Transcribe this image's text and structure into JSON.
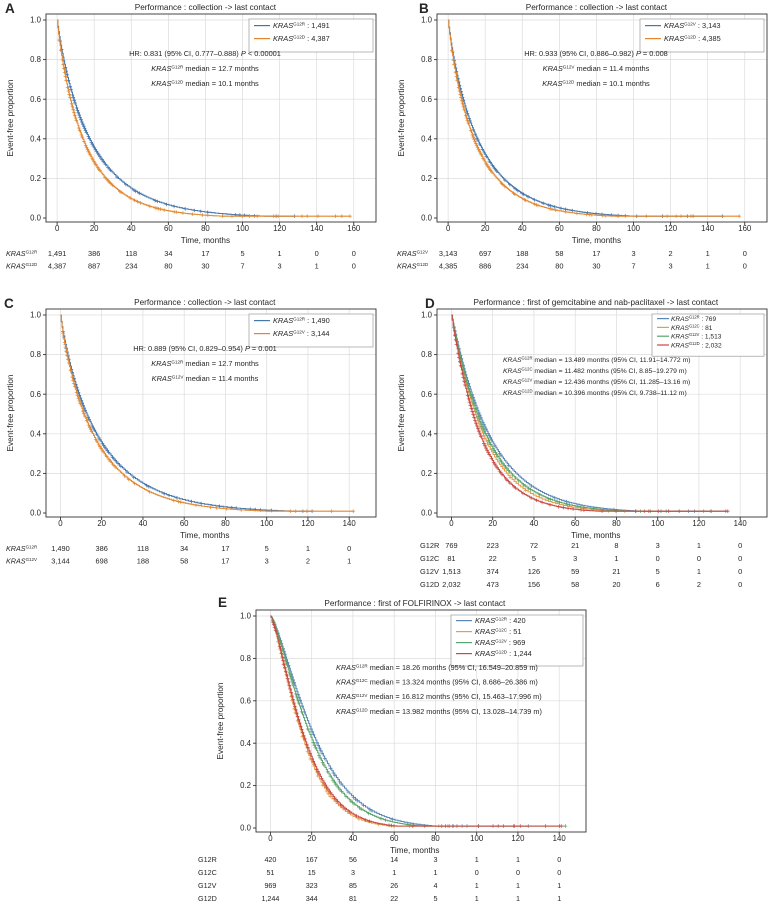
{
  "figure": {
    "background": "#ffffff",
    "text_color": "#262626",
    "grid_color": "#dcdcdc",
    "axis_color": "#333333"
  },
  "chart_data": [
    {
      "type": "km_survival",
      "letter": "A",
      "title": "Performance : collection -> last contact",
      "xlabel": "Time, months",
      "ylabel": "Event-free proportion",
      "xlim": [
        0,
        160
      ],
      "ylim": [
        0,
        1
      ],
      "grid": true,
      "legend_position": "top-right",
      "x_ticks": [
        0,
        20,
        40,
        60,
        80,
        100,
        120,
        140,
        160
      ],
      "y_ticks": [
        0,
        0.2,
        0.4,
        0.6,
        0.8,
        1
      ],
      "stats": [
        "HR: 0.831 (95% CI, 0.777–0.888) *P* < 0.00001",
        "*KRAS*^G12R^ median = 12.7 months",
        "*KRAS*^G12D^ median = 10.1 months"
      ],
      "risk_table_times": [
        0,
        20,
        40,
        60,
        80,
        100,
        120,
        140,
        160
      ],
      "series": [
        {
          "gene": "*KRAS*^G12R^",
          "row_label": "*KRAS*^G12R^",
          "name_plain": "KRAS G12R",
          "n": "1,491",
          "color": "#4577ac",
          "median_months": 12.7,
          "curve_end_months": 128,
          "at_risk": [
            "1,491",
            "386",
            "118",
            "34",
            "17",
            "5",
            "1",
            "0",
            "0"
          ]
        },
        {
          "gene": "*KRAS*^G12D^",
          "row_label": "*KRAS*^G12D^",
          "name_plain": "KRAS G12D",
          "n": "4,387",
          "color": "#e2862e",
          "median_months": 10.1,
          "curve_end_months": 158,
          "at_risk": [
            "4,387",
            "887",
            "234",
            "80",
            "30",
            "7",
            "3",
            "1",
            "0"
          ]
        }
      ]
    },
    {
      "type": "km_survival",
      "letter": "B",
      "title": "Performance : collection -> last contact",
      "xlabel": "Time, months",
      "ylabel": "Event-free proportion",
      "xlim": [
        0,
        160
      ],
      "ylim": [
        0,
        1
      ],
      "grid": true,
      "legend_position": "top-right",
      "x_ticks": [
        0,
        20,
        40,
        60,
        80,
        100,
        120,
        140,
        160
      ],
      "y_ticks": [
        0,
        0.2,
        0.4,
        0.6,
        0.8,
        1
      ],
      "stats": [
        "HR: 0.933 (95% CI, 0.886–0.982) *P* = 0.008",
        "*KRAS*^G12V^ median = 11.4 months",
        "*KRAS*^G12D^ median = 10.1 months"
      ],
      "risk_table_times": [
        0,
        20,
        40,
        60,
        80,
        100,
        120,
        140,
        160
      ],
      "series": [
        {
          "gene": "*KRAS*^G12V^",
          "row_label": "*KRAS*^G12V^",
          "name_plain": "KRAS G12V",
          "n": "3,143",
          "color": "#4577ac",
          "median_months": 11.4,
          "curve_end_months": 148,
          "at_risk": [
            "3,143",
            "697",
            "188",
            "58",
            "17",
            "3",
            "2",
            "1",
            "0"
          ]
        },
        {
          "gene": "*KRAS*^G12D^",
          "row_label": "*KRAS*^G12D^",
          "name_plain": "KRAS G12D",
          "n": "4,385",
          "color": "#e2862e",
          "median_months": 10.1,
          "curve_end_months": 157,
          "at_risk": [
            "4,385",
            "886",
            "234",
            "80",
            "30",
            "7",
            "3",
            "1",
            "0"
          ]
        }
      ]
    },
    {
      "type": "km_survival",
      "letter": "C",
      "title": "Performance : collection -> last contact",
      "xlabel": "Time, months",
      "ylabel": "Event-free proportion",
      "xlim": [
        0,
        140
      ],
      "ylim": [
        0,
        1
      ],
      "grid": true,
      "legend_position": "top-right",
      "x_ticks": [
        0,
        20,
        40,
        60,
        80,
        100,
        120,
        140
      ],
      "y_ticks": [
        0,
        0.2,
        0.4,
        0.6,
        0.8,
        1
      ],
      "stats": [
        "HR: 0.889 (95% CI, 0.829–0.954) *P* = 0.001",
        "*KRAS*^G12R^ median = 12.7 months",
        "*KRAS*^G12V^ median = 11.4 months"
      ],
      "risk_table_times": [
        0,
        20,
        40,
        60,
        80,
        100,
        120,
        140
      ],
      "series": [
        {
          "gene": "*KRAS*^G12R^",
          "row_label": "*KRAS*^G12R^",
          "name_plain": "KRAS G12R",
          "n": "1,490",
          "color": "#4577ac",
          "median_months": 12.7,
          "curve_end_months": 122,
          "at_risk": [
            "1,490",
            "386",
            "118",
            "34",
            "17",
            "5",
            "1",
            "0"
          ]
        },
        {
          "gene": "*KRAS*^G12V^",
          "row_label": "*KRAS*^G12V^",
          "name_plain": "KRAS G12V",
          "n": "3,144",
          "color": "#e2862e",
          "median_months": 11.4,
          "curve_end_months": 142,
          "at_risk": [
            "3,144",
            "698",
            "188",
            "58",
            "17",
            "3",
            "2",
            "1"
          ]
        }
      ]
    },
    {
      "type": "km_survival",
      "letter": "D",
      "title": "Performance : first of gemcitabine and nab-paclitaxel -> last contact",
      "xlabel": "Time, months",
      "ylabel": "Event-free proportion",
      "xlim": [
        0,
        140
      ],
      "ylim": [
        0,
        1
      ],
      "grid": true,
      "legend_position": "top-right",
      "x_ticks": [
        0,
        20,
        40,
        60,
        80,
        100,
        120,
        140
      ],
      "y_ticks": [
        0,
        0.2,
        0.4,
        0.6,
        0.8,
        1
      ],
      "stats": [
        "*KRAS*^G12R^ median = 13.489 months (95% CI, 11.91–14.772 m)",
        "*KRAS*^G12C^ median = 11.482 months (95% CI, 8.85–19.279 m)",
        "*KRAS*^G12V^ median = 12.436 months (95% CI, 11.285–13.16 m)",
        "*KRAS*^G12D^ median = 10.396 months (95% CI, 9.738–11.12 m)"
      ],
      "risk_table_times": [
        0,
        20,
        40,
        60,
        80,
        100,
        120,
        140
      ],
      "series": [
        {
          "gene": "*KRAS*^G12R^",
          "row_label": "G12R",
          "name_plain": "KRAS G12R",
          "n": "769",
          "color": "#5b86b8",
          "median_months": 13.489,
          "curve_end_months": 133,
          "at_risk": [
            "769",
            "223",
            "72",
            "21",
            "8",
            "3",
            "1",
            "0"
          ]
        },
        {
          "gene": "*KRAS*^G12C^",
          "row_label": "G12C",
          "name_plain": "KRAS G12C",
          "n": "81",
          "color": "#e79a48",
          "median_months": 11.482,
          "curve_end_months": 84,
          "at_risk": [
            "81",
            "22",
            "5",
            "3",
            "1",
            "0",
            "0",
            "0"
          ]
        },
        {
          "gene": "*KRAS*^G12V^",
          "row_label": "G12V",
          "name_plain": "KRAS G12V",
          "n": "1,513",
          "color": "#5ba46a",
          "median_months": 12.436,
          "curve_end_months": 126,
          "at_risk": [
            "1,513",
            "374",
            "126",
            "59",
            "21",
            "5",
            "1",
            "0"
          ]
        },
        {
          "gene": "*KRAS*^G12D^",
          "row_label": "G12D",
          "name_plain": "KRAS G12D",
          "n": "2,032",
          "color": "#c74a44",
          "median_months": 10.396,
          "curve_end_months": 134,
          "at_risk": [
            "2,032",
            "473",
            "156",
            "58",
            "20",
            "6",
            "2",
            "0"
          ]
        }
      ]
    },
    {
      "type": "km_survival",
      "letter": "E",
      "title": "Performance : first of FOLFIRINOX -> last contact",
      "xlabel": "Time, months",
      "ylabel": "Event-free proportion",
      "xlim": [
        0,
        140
      ],
      "ylim": [
        0,
        1
      ],
      "grid": true,
      "legend_position": "top-right",
      "x_ticks": [
        0,
        20,
        40,
        60,
        80,
        100,
        120,
        140
      ],
      "y_ticks": [
        0,
        0.2,
        0.4,
        0.6,
        0.8,
        1
      ],
      "stats": [
        "*KRAS*^G12R^ median = 18.26 months (95% CI, 16.549–20.859 m)",
        "*KRAS*^G12C^ median = 13.324 months (95% CI, 8.686–26.386 m)",
        "*KRAS*^G12V^ median = 16.812 months (95% CI, 15.463–17.996 m)",
        "*KRAS*^G12D^ median = 13.982 months (95% CI, 13.028–14.739 m)"
      ],
      "risk_table_times": [
        0,
        20,
        40,
        60,
        80,
        100,
        120,
        140
      ],
      "series": [
        {
          "gene": "*KRAS*^G12R^",
          "row_label": "G12R",
          "name_plain": "KRAS G12R",
          "n": "420",
          "color": "#5b86b8",
          "median_months": 18.26,
          "curve_end_months": 125,
          "at_risk": [
            "420",
            "167",
            "56",
            "14",
            "3",
            "1",
            "1",
            "0"
          ]
        },
        {
          "gene": "*KRAS*^G12C^",
          "row_label": "G12C",
          "name_plain": "KRAS G12C",
          "n": "51",
          "color": "#e79a48",
          "median_months": 13.324,
          "curve_end_months": 86,
          "at_risk": [
            "51",
            "15",
            "3",
            "1",
            "1",
            "0",
            "0",
            "0"
          ]
        },
        {
          "gene": "*KRAS*^G12V^",
          "row_label": "G12V",
          "name_plain": "KRAS G12V",
          "n": "969",
          "color": "#5ba46a",
          "median_months": 16.812,
          "curve_end_months": 143,
          "at_risk": [
            "969",
            "323",
            "85",
            "26",
            "4",
            "1",
            "1",
            "1"
          ]
        },
        {
          "gene": "*KRAS*^G12D^",
          "row_label": "G12D",
          "name_plain": "KRAS G12D",
          "n": "1,244",
          "color": "#c74a44",
          "median_months": 13.982,
          "curve_end_months": 141,
          "at_risk": [
            "1,244",
            "344",
            "81",
            "22",
            "5",
            "1",
            "1",
            "1"
          ]
        }
      ]
    }
  ]
}
